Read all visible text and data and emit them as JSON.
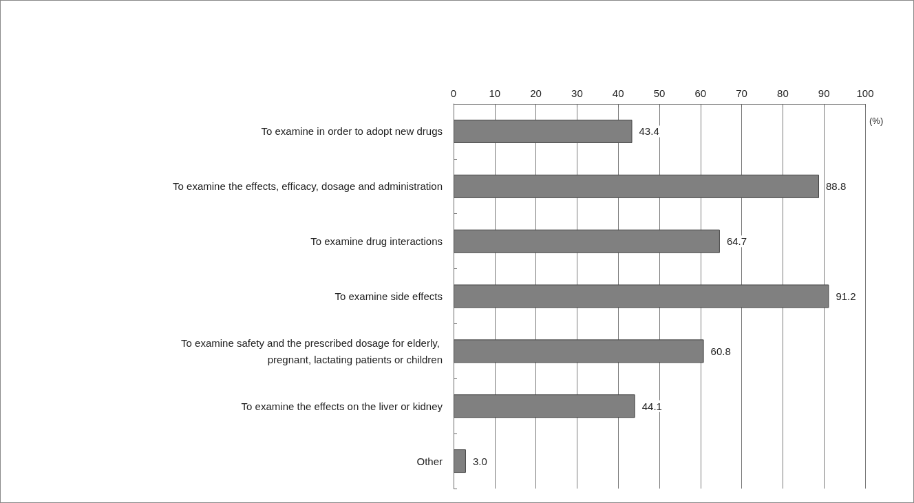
{
  "chart_data": {
    "type": "bar",
    "orientation": "horizontal",
    "xlabel": "(%)",
    "categories": [
      "To examine in order to adopt new drugs",
      "To examine the effects, efficacy, dosage and administration",
      "To examine drug interactions",
      "To examine side effects",
      "To examine safety and the prescribed dosage for elderly, pregnant, lactating patients or children",
      "To examine the effects on the liver or kidney",
      "Other"
    ],
    "values": [
      43.4,
      88.8,
      64.7,
      91.2,
      60.8,
      44.1,
      3.0
    ],
    "value_labels": [
      "43.4",
      "88.8",
      "64.7",
      "91.2",
      "60.8",
      "44.1",
      "3.0"
    ],
    "color": "#808080",
    "xlim": [
      0,
      100
    ],
    "xticks": [
      0,
      10,
      20,
      30,
      40,
      50,
      60,
      70,
      80,
      90,
      100
    ],
    "grid": "x"
  }
}
